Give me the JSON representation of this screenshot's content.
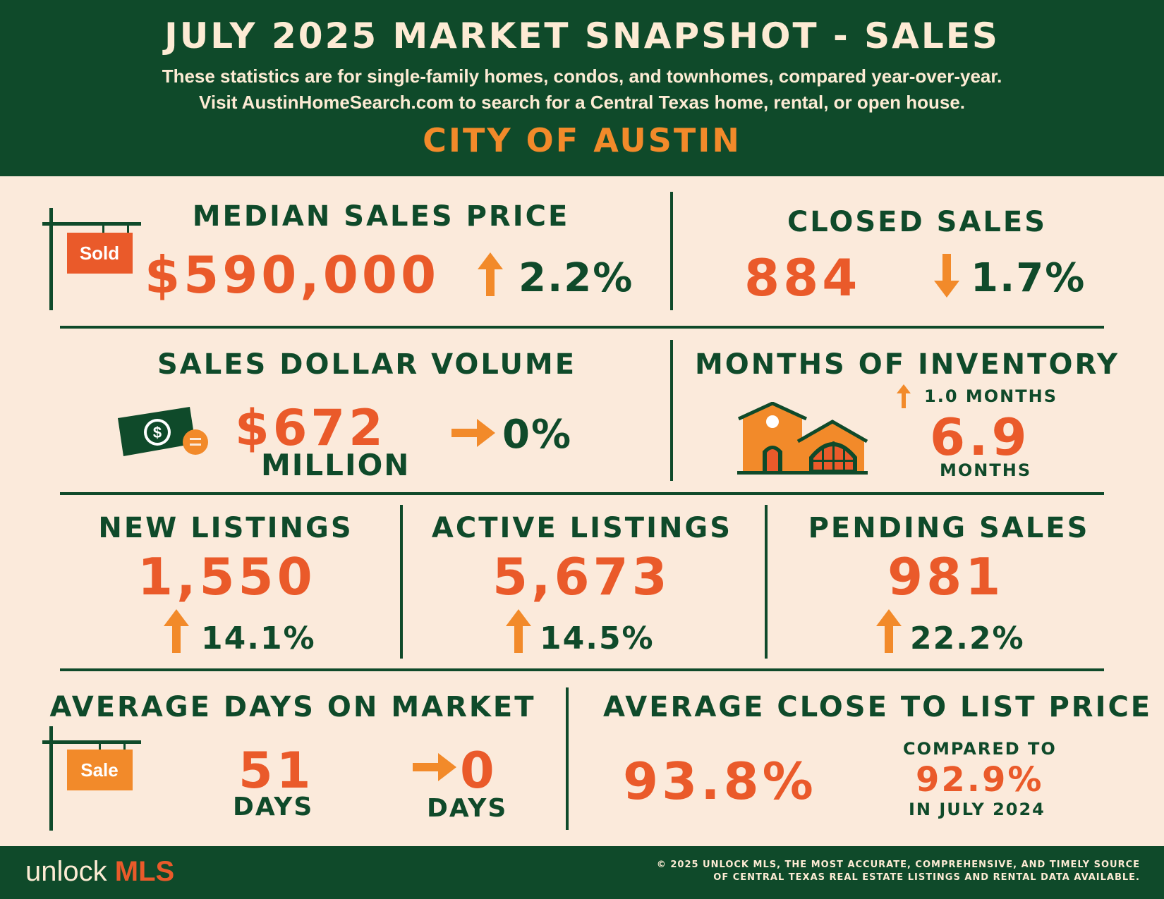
{
  "header": {
    "title": "JULY 2025 MARKET SNAPSHOT - SALES",
    "subtitle_line1": "These statistics are for single-family homes, condos, and townhomes, compared year-over-year.",
    "subtitle_line2": "Visit AustinHomeSearch.com to search for a Central Texas home, rental, or open house.",
    "city": "CITY OF AUSTIN"
  },
  "median_sales_price": {
    "label": "MEDIAN SALES PRICE",
    "value": "$590,000",
    "change": "2.2%",
    "direction": "up",
    "sign_text": "Sold"
  },
  "closed_sales": {
    "label": "CLOSED SALES",
    "value": "884",
    "change": "1.7%",
    "direction": "down"
  },
  "sales_dollar_volume": {
    "label": "SALES DOLLAR VOLUME",
    "value": "$672",
    "unit": "MILLION",
    "change": "0%",
    "direction": "flat"
  },
  "months_of_inventory": {
    "label": "MONTHS OF INVENTORY",
    "change": "1.0  MONTHS",
    "direction": "up",
    "value": "6.9",
    "unit": "MONTHS"
  },
  "new_listings": {
    "label": "NEW LISTINGS",
    "value": "1,550",
    "change": "14.1%",
    "direction": "up"
  },
  "active_listings": {
    "label": "ACTIVE LISTINGS",
    "value": "5,673",
    "change": "14.5%",
    "direction": "up"
  },
  "pending_sales": {
    "label": "PENDING SALES",
    "value": "981",
    "change": "22.2%",
    "direction": "up"
  },
  "avg_days_on_market": {
    "label": "AVERAGE DAYS ON MARKET",
    "value": "51",
    "unit": "DAYS",
    "change": "0",
    "change_unit": "DAYS",
    "direction": "flat",
    "sign_text": "Sale"
  },
  "avg_close_to_list": {
    "label": "AVERAGE CLOSE TO LIST PRICE",
    "value": "93.8%",
    "compared_label": "COMPARED TO",
    "compared_value": "92.9%",
    "compared_period": "IN JULY 2024"
  },
  "footer": {
    "logo_unlock": "unlock",
    "logo_mls": "MLS",
    "copyright_line1": "© 2025 UNLOCK MLS, THE MOST ACCURATE, COMPREHENSIVE, AND TIMELY SOURCE",
    "copyright_line2": "OF CENTRAL TEXAS REAL ESTATE LISTINGS AND RENTAL DATA AVAILABLE."
  },
  "colors": {
    "dark_green": "#0f4a2a",
    "orange_red": "#ea5a2a",
    "orange": "#f28a2a",
    "cream": "#fbeadb"
  },
  "icons": [
    "up-arrow-icon",
    "down-arrow-icon",
    "right-arrow-icon",
    "sold-sign-icon",
    "sale-sign-icon",
    "money-bill-icon",
    "house-icon"
  ]
}
